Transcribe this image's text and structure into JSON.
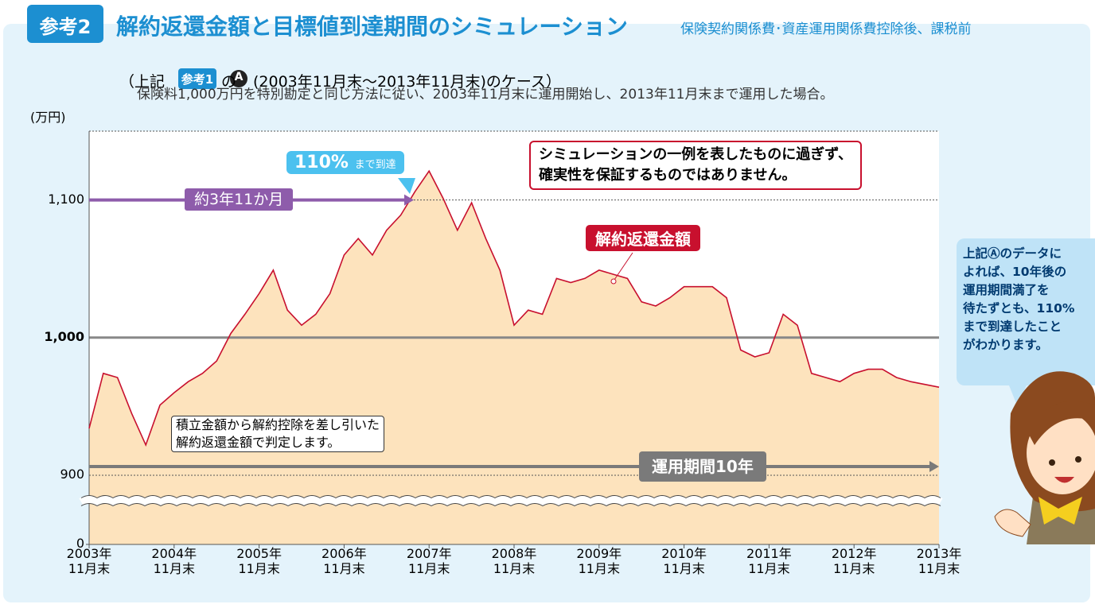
{
  "header": {
    "badge": "参考2",
    "title": "解約返還金額と目標値到達期間のシミュレーション",
    "subtitle": "保険契約関係費･資産運用関係費控除後、課税前",
    "case_open": "（上記",
    "case_badge": "参考1",
    "case_of": "の",
    "case_mark": "A",
    "case_rest": "(2003年11月末～2013年11月末)のケース）",
    "description": "保険料1,000万円を特別勘定と同じ方法に従い、2003年11月末に運用開始し、2013年11月末まで運用した場合。"
  },
  "chart_data": {
    "type": "area",
    "y_label": "(万円)",
    "axis_break": true,
    "grid": true,
    "color": "#c8102e",
    "fill": "#fde3bd",
    "series": [
      {
        "name": "解約返還金額",
        "color": "#c8102e",
        "x": [
          "2003-11",
          "2004-01",
          "2004-03",
          "2004-05",
          "2004-07",
          "2004-09",
          "2004-11",
          "2005-01",
          "2005-03",
          "2005-05",
          "2005-07",
          "2005-09",
          "2005-11",
          "2006-01",
          "2006-03",
          "2006-05",
          "2006-07",
          "2006-09",
          "2006-11",
          "2007-01",
          "2007-03",
          "2007-05",
          "2007-07",
          "2007-09",
          "2007-11",
          "2008-01",
          "2008-03",
          "2008-05",
          "2008-07",
          "2008-09",
          "2008-11",
          "2009-01",
          "2009-03",
          "2009-05",
          "2009-07",
          "2009-09",
          "2009-11",
          "2010-01",
          "2010-03",
          "2010-05",
          "2010-07",
          "2010-09",
          "2010-11",
          "2011-01",
          "2011-03",
          "2011-05",
          "2011-07",
          "2011-09",
          "2011-11",
          "2012-01",
          "2012-03",
          "2012-05",
          "2012-07",
          "2012-09",
          "2012-11",
          "2013-01",
          "2013-03",
          "2013-05",
          "2013-07",
          "2013-09",
          "2013-11"
        ],
        "values": [
          934,
          974,
          971,
          945,
          922,
          951,
          960,
          968,
          974,
          983,
          1003,
          1017,
          1032,
          1049,
          1020,
          1009,
          1017,
          1032,
          1060,
          1072,
          1060,
          1078,
          1089,
          1106,
          1121,
          1101,
          1078,
          1098,
          1072,
          1049,
          1009,
          1020,
          1017,
          1043,
          1040,
          1043,
          1049,
          1046,
          1043,
          1026,
          1023,
          1029,
          1037,
          1037,
          1037,
          1029,
          991,
          986,
          989,
          1017,
          1009,
          974,
          971,
          968,
          974,
          977,
          977,
          971,
          968,
          966,
          964
        ]
      }
    ],
    "ylim": [
      0,
      1150
    ],
    "yticks": [
      0,
      900,
      {
        "value": 1000,
        "label": "1,000"
      },
      {
        "value": 1100,
        "label": "1,100"
      }
    ],
    "xticks": [
      {
        "value": "2003-11",
        "label": "2003年\n11月末"
      },
      {
        "value": "2004-11",
        "label": "2004年\n11月末"
      },
      {
        "value": "2005-11",
        "label": "2005年\n11月末"
      },
      {
        "value": "2006-11",
        "label": "2006年\n11月末"
      },
      {
        "value": "2007-11",
        "label": "2007年\n11月末"
      },
      {
        "value": "2008-11",
        "label": "2008年\n11月末"
      },
      {
        "value": "2009-11",
        "label": "2009年\n11月末"
      },
      {
        "value": "2010-11",
        "label": "2010年\n11月末"
      },
      {
        "value": "2011-11",
        "label": "2011年\n11月末"
      },
      {
        "value": "2012-11",
        "label": "2012年\n11月末"
      },
      {
        "value": "2013-11",
        "label": "2013年\n11月末"
      }
    ],
    "annotations": {
      "reach_pct": "110%",
      "reach_text": "まで到達",
      "period_to_target": "約3年11か月",
      "disclaimer": "シミュレーションの一例を表したものに過ぎず、\n確実性を保証するものではありません。",
      "note": "積立金額から解約控除を差し引いた\n解約返還金額で判定します。",
      "period": "運用期間10年"
    },
    "bubble": "上記Ⓐのデータに\nよれば、10年後の\n運用期間満了を\n待たずとも、110%\nまで到達したこと\nがわかります。"
  }
}
